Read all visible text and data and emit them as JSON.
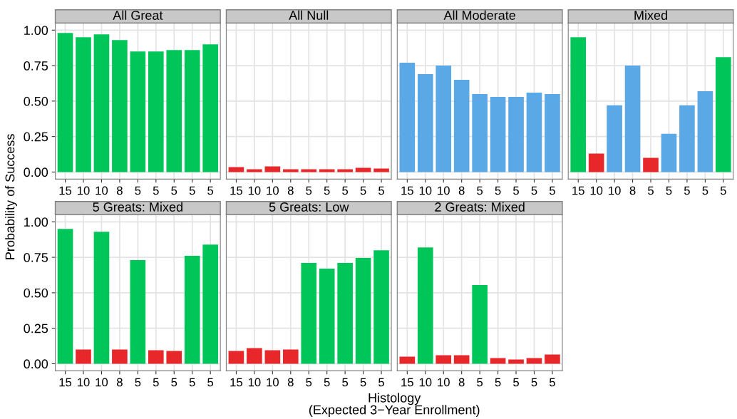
{
  "chart_data": [
    {
      "type": "bar",
      "title": "All Great",
      "ylabel": "Probability of Success",
      "categories": [
        "15",
        "10",
        "10",
        "8",
        "5",
        "5",
        "5",
        "5",
        "5"
      ],
      "values": [
        0.98,
        0.95,
        0.97,
        0.93,
        0.85,
        0.85,
        0.86,
        0.86,
        0.9
      ],
      "colors": [
        "#00c65a",
        "#00c65a",
        "#00c65a",
        "#00c65a",
        "#00c65a",
        "#00c65a",
        "#00c65a",
        "#00c65a",
        "#00c65a"
      ],
      "ylim": [
        -0.05,
        1.05
      ],
      "yticks": [
        {
          "value": 0,
          "label": "0.00"
        },
        {
          "value": 0.25,
          "label": "0.25"
        },
        {
          "value": 0.5,
          "label": "0.50"
        },
        {
          "value": 0.75,
          "label": "0.75"
        },
        {
          "value": 1,
          "label": "1.00"
        }
      ],
      "grid": true
    },
    {
      "type": "bar",
      "title": "All Null",
      "categories": [
        "15",
        "10",
        "10",
        "8",
        "5",
        "5",
        "5",
        "5",
        "5"
      ],
      "values": [
        0.035,
        0.02,
        0.04,
        0.02,
        0.02,
        0.02,
        0.02,
        0.03,
        0.025
      ],
      "colors": [
        "#e8272a",
        "#e8272a",
        "#e8272a",
        "#e8272a",
        "#e8272a",
        "#e8272a",
        "#e8272a",
        "#e8272a",
        "#e8272a"
      ],
      "ylim": [
        -0.05,
        1.05
      ],
      "yticks": [
        0,
        0.25,
        0.5,
        0.75,
        1
      ],
      "grid": true,
      "tick_labels": "x"
    },
    {
      "type": "bar",
      "title": "All Moderate",
      "categories": [
        "15",
        "10",
        "10",
        "8",
        "5",
        "5",
        "5",
        "5",
        "5"
      ],
      "values": [
        0.77,
        0.69,
        0.75,
        0.65,
        0.55,
        0.53,
        0.53,
        0.56,
        0.55
      ],
      "colors": [
        "#5aa8e6",
        "#5aa8e6",
        "#5aa8e6",
        "#5aa8e6",
        "#5aa8e6",
        "#5aa8e6",
        "#5aa8e6",
        "#5aa8e6",
        "#5aa8e6"
      ],
      "ylim": [
        -0.05,
        1.05
      ],
      "yticks": [
        0,
        0.25,
        0.5,
        0.75,
        1
      ],
      "grid": true,
      "tick_labels": "x"
    },
    {
      "type": "bar",
      "title": "Mixed",
      "categories": [
        "15",
        "10",
        "10",
        "8",
        "5",
        "5",
        "5",
        "5",
        "5"
      ],
      "values": [
        0.95,
        0.13,
        0.47,
        0.75,
        0.1,
        0.27,
        0.47,
        0.57,
        0.81
      ],
      "colors": [
        "#00c65a",
        "#e8272a",
        "#5aa8e6",
        "#5aa8e6",
        "#e8272a",
        "#5aa8e6",
        "#5aa8e6",
        "#5aa8e6",
        "#00c65a"
      ],
      "ylim": [
        -0.05,
        1.05
      ],
      "yticks": [
        0,
        0.25,
        0.5,
        0.75,
        1
      ],
      "grid": true,
      "tick_labels": "x"
    },
    {
      "type": "bar",
      "title": "5 Greats: Mixed",
      "categories": [
        "15",
        "10",
        "10",
        "8",
        "5",
        "5",
        "5",
        "5",
        "5"
      ],
      "values": [
        0.95,
        0.1,
        0.93,
        0.1,
        0.73,
        0.095,
        0.09,
        0.76,
        0.84
      ],
      "colors": [
        "#00c65a",
        "#e8272a",
        "#00c65a",
        "#e8272a",
        "#00c65a",
        "#e8272a",
        "#e8272a",
        "#00c65a",
        "#00c65a"
      ],
      "ylim": [
        -0.05,
        1.05
      ],
      "yticks": [
        {
          "value": 0,
          "label": "0.00"
        },
        {
          "value": 0.25,
          "label": "0.25"
        },
        {
          "value": 0.5,
          "label": "0.50"
        },
        {
          "value": 0.75,
          "label": "0.75"
        },
        {
          "value": 1,
          "label": "1.00"
        }
      ],
      "grid": true
    },
    {
      "type": "bar",
      "title": "5 Greats: Low",
      "annotations": [
        "Histology\n(Expected 3−Year Enrollment)"
      ],
      "categories": [
        "15",
        "10",
        "10",
        "8",
        "5",
        "5",
        "5",
        "5",
        "5"
      ],
      "values": [
        0.09,
        0.11,
        0.095,
        0.1,
        0.71,
        0.67,
        0.71,
        0.745,
        0.8
      ],
      "colors": [
        "#e8272a",
        "#e8272a",
        "#e8272a",
        "#e8272a",
        "#00c65a",
        "#00c65a",
        "#00c65a",
        "#00c65a",
        "#00c65a"
      ],
      "ylim": [
        -0.05,
        1.05
      ],
      "yticks": [
        0,
        0.25,
        0.5,
        0.75,
        1
      ],
      "grid": true,
      "tick_labels": "x"
    },
    {
      "type": "bar",
      "title": "2 Greats: Mixed",
      "categories": [
        "15",
        "10",
        "10",
        "8",
        "5",
        "5",
        "5",
        "5",
        "5"
      ],
      "values": [
        0.05,
        0.82,
        0.06,
        0.06,
        0.555,
        0.04,
        0.03,
        0.04,
        0.065
      ],
      "colors": [
        "#e8272a",
        "#00c65a",
        "#e8272a",
        "#e8272a",
        "#00c65a",
        "#e8272a",
        "#e8272a",
        "#e8272a",
        "#e8272a"
      ],
      "ylim": [
        -0.05,
        1.05
      ],
      "yticks": [
        0,
        0.25,
        0.5,
        0.75,
        1
      ],
      "grid": true,
      "tick_labels": "x"
    }
  ]
}
